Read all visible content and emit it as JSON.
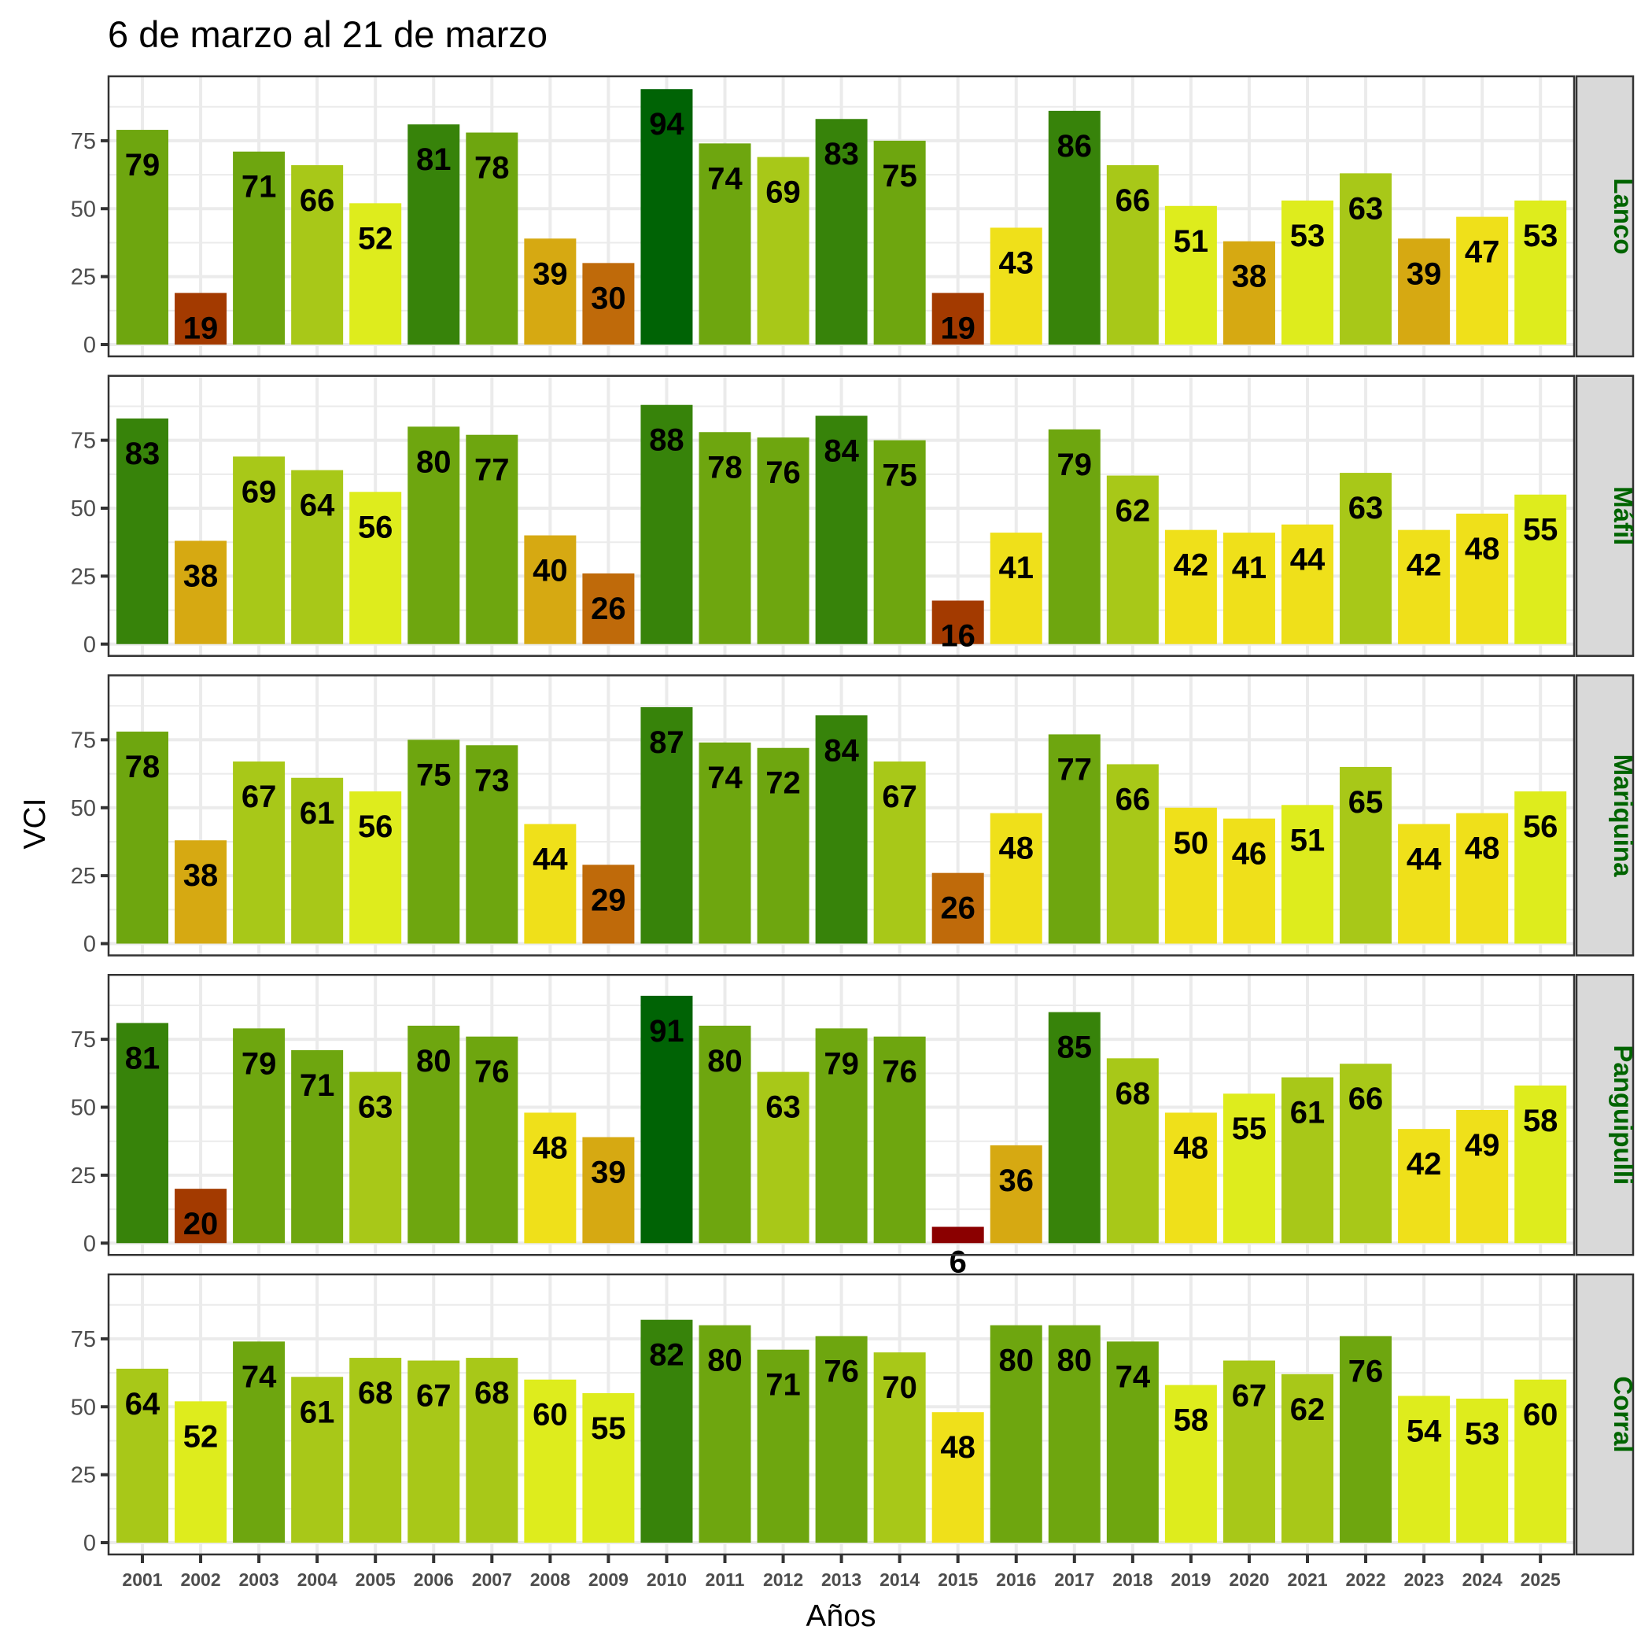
{
  "chart_data": {
    "type": "bar",
    "title": "6 de marzo al 21 de marzo",
    "xlabel": "Años",
    "ylabel": "VCI",
    "ylim": [
      0,
      98.7
    ],
    "yticks": [
      0,
      25,
      50,
      75
    ],
    "grid": true,
    "facet_strip_color": "#006400",
    "facet_strip_background": "#d9d9d9",
    "categories": [
      "2001",
      "2002",
      "2003",
      "2004",
      "2005",
      "2006",
      "2007",
      "2008",
      "2009",
      "2010",
      "2011",
      "2012",
      "2013",
      "2014",
      "2015",
      "2016",
      "2017",
      "2018",
      "2019",
      "2020",
      "2021",
      "2022",
      "2023",
      "2024",
      "2025"
    ],
    "color_bins": [
      {
        "max": 10,
        "color": "#8b0000"
      },
      {
        "max": 20,
        "color": "#a33a00"
      },
      {
        "max": 30,
        "color": "#bf6a0a"
      },
      {
        "max": 40,
        "color": "#d6a912"
      },
      {
        "max": 50,
        "color": "#efe01a"
      },
      {
        "max": 60,
        "color": "#deec1d"
      },
      {
        "max": 70,
        "color": "#a8c818"
      },
      {
        "max": 80,
        "color": "#6ea60f"
      },
      {
        "max": 90,
        "color": "#37830a"
      },
      {
        "max": 100,
        "color": "#006305"
      }
    ],
    "series": [
      {
        "name": "Lanco",
        "values": [
          79,
          19,
          71,
          66,
          52,
          81,
          78,
          39,
          30,
          94,
          74,
          69,
          83,
          75,
          19,
          43,
          86,
          66,
          51,
          38,
          53,
          63,
          39,
          47,
          53
        ]
      },
      {
        "name": "Máfil",
        "values": [
          83,
          38,
          69,
          64,
          56,
          80,
          77,
          40,
          26,
          88,
          78,
          76,
          84,
          75,
          16,
          41,
          79,
          62,
          42,
          41,
          44,
          63,
          42,
          48,
          55
        ]
      },
      {
        "name": "Mariquina",
        "values": [
          78,
          38,
          67,
          61,
          56,
          75,
          73,
          44,
          29,
          87,
          74,
          72,
          84,
          67,
          26,
          48,
          77,
          66,
          50,
          46,
          51,
          65,
          44,
          48,
          56
        ]
      },
      {
        "name": "Panguipulli",
        "values": [
          81,
          20,
          79,
          71,
          63,
          80,
          76,
          48,
          39,
          91,
          80,
          63,
          79,
          76,
          6,
          36,
          85,
          68,
          48,
          55,
          61,
          66,
          42,
          49,
          58
        ]
      },
      {
        "name": "Corral",
        "values": [
          64,
          52,
          74,
          61,
          68,
          67,
          68,
          60,
          55,
          82,
          80,
          71,
          76,
          70,
          48,
          80,
          80,
          74,
          58,
          67,
          62,
          76,
          54,
          53,
          60
        ]
      }
    ]
  }
}
